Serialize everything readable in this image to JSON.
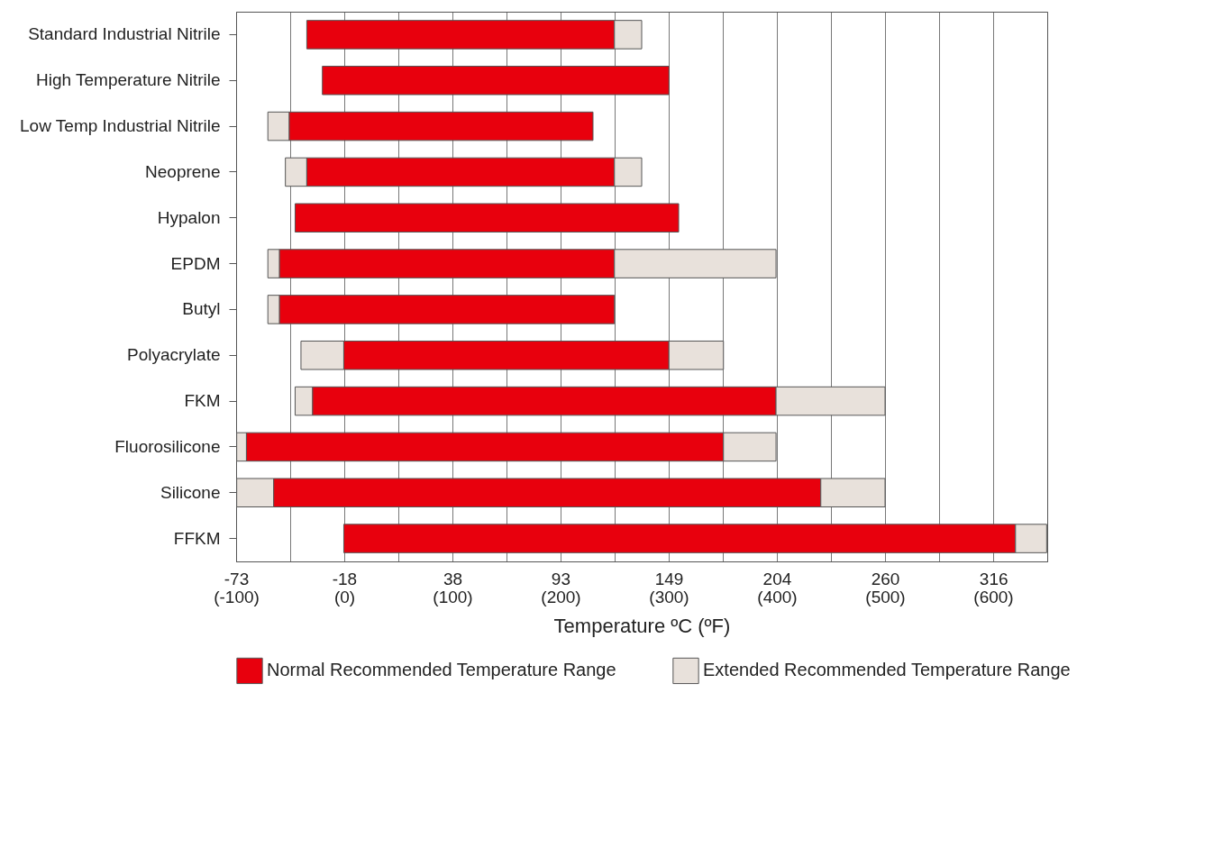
{
  "chart_data": {
    "type": "bar",
    "orientation": "horizontal",
    "xlabel": "Temperature ºC (ºF)",
    "categories": [
      "Standard Industrial Nitrile",
      "High Temperature Nitrile",
      "Low Temp Industrial Nitrile",
      "Neoprene",
      "Hypalon",
      "EPDM",
      "Butyl",
      "Polyacrylate",
      "FKM",
      "Fluorosilicone",
      "Silicone",
      "FFKM"
    ],
    "series": [
      {
        "name": "Extended Recommended Temperature Range",
        "color": "#e8e1db",
        "base": [
          null,
          null,
          -57,
          -48,
          null,
          -57,
          -57,
          -40,
          -43,
          -73,
          -73,
          null
        ],
        "values": [
          null,
          null,
          11,
          11,
          null,
          6,
          6,
          22,
          9,
          5,
          19,
          null
        ]
      },
      {
        "name": "Normal Recommended Temperature Range",
        "color": "#e8000d",
        "base": [
          -37,
          -29,
          -46,
          -37,
          -43,
          -51,
          -51,
          -18,
          -34,
          -68,
          -54,
          -18
        ],
        "values": [
          158,
          178,
          156,
          158,
          197,
          172,
          172,
          167,
          238,
          245,
          281,
          345
        ]
      },
      {
        "color": "#e8e1db",
        "base": [
          121,
          null,
          null,
          121,
          null,
          121,
          null,
          149,
          204,
          177,
          227,
          327
        ],
        "values": [
          14,
          null,
          null,
          14,
          null,
          83,
          null,
          28,
          56,
          27,
          33,
          16
        ]
      }
    ],
    "xlim": [
      -73.3,
      343.3
    ],
    "xticks": [
      {
        "value": -73.3,
        "label": "-73"
      },
      {
        "value": -45.6,
        "label": null
      },
      {
        "value": -17.8,
        "label": "-18"
      },
      {
        "value": 10,
        "label": null
      },
      {
        "value": 37.8,
        "label": "38"
      },
      {
        "value": 65.6,
        "label": null
      },
      {
        "value": 93.3,
        "label": "93"
      },
      {
        "value": 121.1,
        "label": null
      },
      {
        "value": 148.9,
        "label": "149"
      },
      {
        "value": 176.7,
        "label": null
      },
      {
        "value": 204.4,
        "label": "204"
      },
      {
        "value": 232.2,
        "label": null
      },
      260,
      {
        "value": 287.8,
        "label": null
      },
      {
        "value": 315.6,
        "label": "316"
      },
      {
        "value": 343.3,
        "label": null
      }
    ],
    "x2lim": [
      -100,
      650
    ],
    "x2ticks": [
      {
        "value": -100,
        "label": "(-100)"
      },
      {
        "value": 0,
        "label": "(0)"
      },
      {
        "value": 100,
        "label": "(100)"
      },
      {
        "value": 200,
        "label": "(200)"
      },
      {
        "value": 300,
        "label": "(300)"
      },
      {
        "value": 400,
        "label": "(400)"
      },
      {
        "value": 500,
        "label": "(500)"
      },
      {
        "value": 600,
        "label": "(600)"
      }
    ],
    "grid": "x",
    "legend": "bottom"
  }
}
